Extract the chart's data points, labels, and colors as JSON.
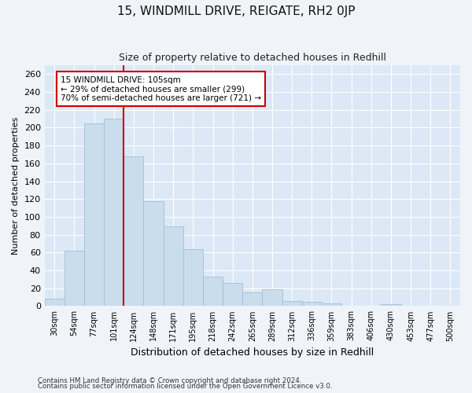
{
  "title1": "15, WINDMILL DRIVE, REIGATE, RH2 0JP",
  "title2": "Size of property relative to detached houses in Redhill",
  "xlabel": "Distribution of detached houses by size in Redhill",
  "ylabel": "Number of detached properties",
  "categories": [
    "30sqm",
    "54sqm",
    "77sqm",
    "101sqm",
    "124sqm",
    "148sqm",
    "171sqm",
    "195sqm",
    "218sqm",
    "242sqm",
    "265sqm",
    "289sqm",
    "312sqm",
    "336sqm",
    "359sqm",
    "383sqm",
    "406sqm",
    "430sqm",
    "453sqm",
    "477sqm",
    "500sqm"
  ],
  "values": [
    8,
    62,
    205,
    210,
    168,
    118,
    89,
    64,
    33,
    26,
    15,
    19,
    6,
    5,
    3,
    0,
    0,
    2,
    0,
    0,
    0
  ],
  "bar_color": "#c9dded",
  "bar_edge_color": "#a0bfd8",
  "vline_color": "#cc0000",
  "annotation_text": "15 WINDMILL DRIVE: 105sqm\n← 29% of detached houses are smaller (299)\n70% of semi-detached houses are larger (721) →",
  "annotation_box_color": "#ffffff",
  "annotation_box_edge": "#cc0000",
  "ylim": [
    0,
    270
  ],
  "yticks": [
    0,
    20,
    40,
    60,
    80,
    100,
    120,
    140,
    160,
    180,
    200,
    220,
    240,
    260
  ],
  "bg_color": "#dce8f5",
  "fig_color": "#f0f4f8",
  "footnote1": "Contains HM Land Registry data © Crown copyright and database right 2024.",
  "footnote2": "Contains public sector information licensed under the Open Government Licence v3.0."
}
